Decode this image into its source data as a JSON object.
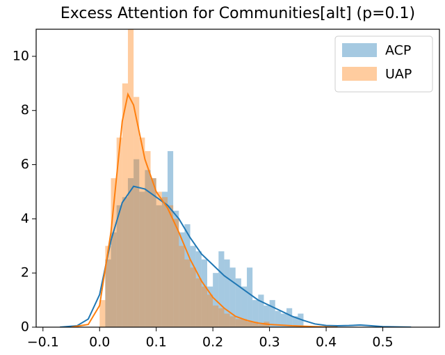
{
  "chart_data": {
    "type": "histogram",
    "title": "Excess Attention for Communities[alt] (p=0.1)",
    "xlim": [
      -0.112,
      0.6
    ],
    "ylim": [
      0,
      11
    ],
    "xticks": [
      {
        "value": -0.1,
        "label": "−0.1"
      },
      {
        "value": 0,
        "label": "0.0"
      },
      0.1,
      0.2,
      0.3,
      0.4,
      0.5
    ],
    "yticks": [
      0,
      2,
      4,
      6,
      8,
      10
    ],
    "legend": "upper right",
    "series": [
      {
        "name": "ACP",
        "color": "#1f77b4",
        "bins": [
          0.01,
          0.02,
          0.03,
          0.04,
          0.05,
          0.06,
          0.07,
          0.08,
          0.09,
          0.1,
          0.11,
          0.12,
          0.13,
          0.14,
          0.15,
          0.16,
          0.17,
          0.18,
          0.19,
          0.2,
          0.21,
          0.22,
          0.23,
          0.24,
          0.25,
          0.26,
          0.27,
          0.28,
          0.29,
          0.3,
          0.31,
          0.32,
          0.33,
          0.34,
          0.35,
          0.36
        ],
        "values": [
          2.5,
          3.5,
          4.5,
          4.8,
          5.5,
          6.2,
          5.0,
          5.8,
          5.5,
          4.5,
          5.0,
          6.5,
          4.3,
          3.5,
          3.8,
          3.0,
          2.8,
          2.5,
          1.5,
          2.0,
          2.8,
          2.5,
          2.2,
          1.8,
          1.5,
          2.2,
          1.0,
          1.2,
          0.8,
          1.0,
          0.6,
          0.5,
          0.7,
          0.4,
          0.5
        ],
        "kde": {
          "x": [
            -0.07,
            -0.04,
            -0.02,
            0,
            0.02,
            0.04,
            0.06,
            0.08,
            0.1,
            0.12,
            0.14,
            0.16,
            0.18,
            0.2,
            0.22,
            0.24,
            0.26,
            0.28,
            0.3,
            0.32,
            0.34,
            0.36,
            0.38,
            0.4,
            0.42,
            0.44,
            0.46,
            0.48,
            0.5,
            0.55
          ],
          "values": [
            0,
            0.05,
            0.3,
            1.2,
            3.2,
            4.6,
            5.2,
            5.1,
            4.8,
            4.5,
            4.0,
            3.3,
            2.7,
            2.3,
            1.9,
            1.6,
            1.3,
            1.0,
            0.8,
            0.6,
            0.4,
            0.25,
            0.12,
            0.06,
            0.05,
            0.06,
            0.08,
            0.05,
            0.02,
            0
          ]
        }
      },
      {
        "name": "UAP",
        "color": "#ff7f0e",
        "bins": [
          0.0,
          0.01,
          0.02,
          0.03,
          0.04,
          0.05,
          0.06,
          0.07,
          0.08,
          0.09,
          0.1,
          0.11,
          0.12,
          0.13,
          0.14,
          0.15,
          0.16,
          0.17,
          0.18,
          0.19,
          0.2,
          0.21,
          0.22,
          0.23,
          0.24,
          0.25,
          0.26,
          0.27,
          0.28,
          0.29,
          0.3
        ],
        "values": [
          1.0,
          3.0,
          5.5,
          7.0,
          9.0,
          11.5,
          8.5,
          7.0,
          6.5,
          5.5,
          5.0,
          4.8,
          4.5,
          4.0,
          3.0,
          2.5,
          2.2,
          1.8,
          1.5,
          1.2,
          0.8,
          0.7,
          0.5,
          0.4,
          0.3,
          0.3,
          0.2,
          0.2,
          0.1,
          0.2
        ],
        "kde": {
          "x": [
            -0.05,
            -0.02,
            0,
            0.02,
            0.04,
            0.05,
            0.06,
            0.08,
            0.1,
            0.12,
            0.14,
            0.16,
            0.18,
            0.2,
            0.22,
            0.24,
            0.26,
            0.28,
            0.3,
            0.34,
            0.38,
            0.42
          ],
          "values": [
            0,
            0.1,
            0.8,
            3.5,
            7.6,
            8.6,
            8.2,
            6.2,
            5.0,
            4.4,
            3.5,
            2.5,
            1.7,
            1.1,
            0.7,
            0.4,
            0.25,
            0.15,
            0.1,
            0.05,
            0.02,
            0
          ]
        }
      }
    ]
  }
}
